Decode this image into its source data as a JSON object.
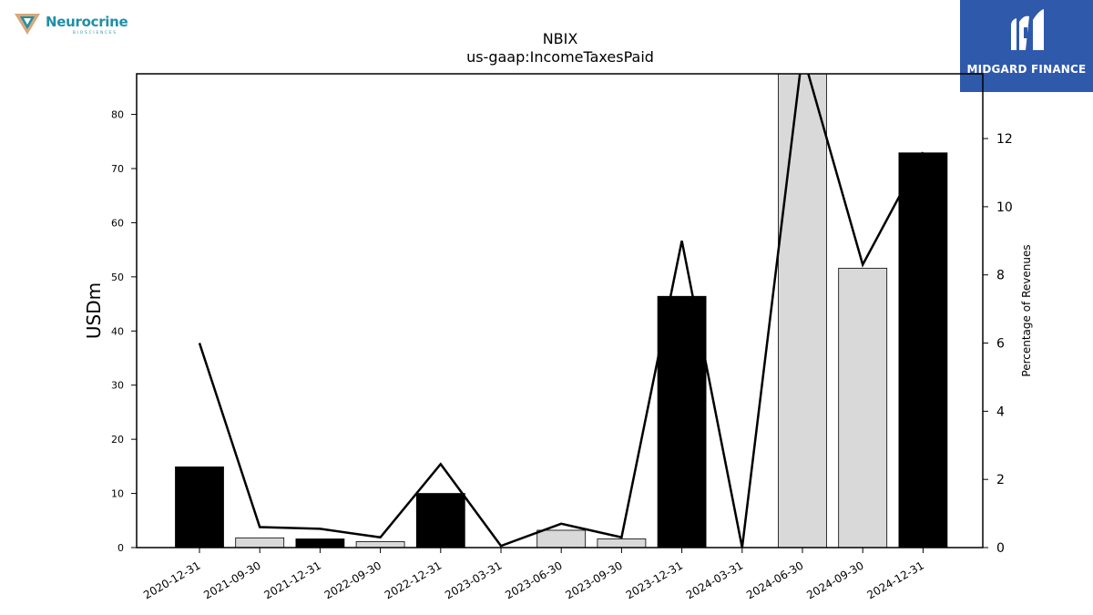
{
  "logos": {
    "left_brand": "Neurocrine",
    "left_sub": "BIOSCIENCES",
    "right_brand": "MIDGARD FINANCE"
  },
  "colors": {
    "bar_black": "#000000",
    "bar_light": "#d9d9d9",
    "line": "#000000",
    "right_logo_bg": "#2f5aab",
    "left_logo_accent": "#1f8fa6"
  },
  "chart_data": {
    "type": "bar",
    "title": "NBIX",
    "subtitle": "us-gaap:IncomeTaxesPaid",
    "ylabel": "USDm",
    "y2label": "Percentage of Revenues",
    "ylim": [
      0,
      87.5
    ],
    "y2lim": [
      0,
      13.9
    ],
    "yticks": [
      0,
      10,
      20,
      30,
      40,
      50,
      60,
      70,
      80
    ],
    "y2ticks": [
      0,
      2,
      4,
      6,
      8,
      10,
      12
    ],
    "grid": false,
    "categories": [
      "2020-12-31",
      "2021-09-30",
      "2021-12-31",
      "2022-09-30",
      "2022-12-31",
      "2023-03-31",
      "2023-06-30",
      "2023-09-30",
      "2023-12-31",
      "2024-03-31",
      "2024-06-30",
      "2024-09-30",
      "2024-12-31"
    ],
    "series": [
      {
        "kind": "bar",
        "values": [
          14.9,
          1.8,
          1.6,
          1.1,
          10.0,
          0.0,
          3.2,
          1.6,
          46.4,
          0.0,
          88.0,
          51.6,
          72.9
        ],
        "colors": [
          "black",
          "light",
          "black",
          "light",
          "black",
          "light",
          "light",
          "light",
          "black",
          "light",
          "light",
          "light",
          "black"
        ]
      },
      {
        "kind": "line",
        "axis": "right",
        "values": [
          6.0,
          0.6,
          0.55,
          0.3,
          2.45,
          0.05,
          0.7,
          0.3,
          9.0,
          0.0,
          14.5,
          8.3,
          11.6
        ]
      }
    ]
  }
}
